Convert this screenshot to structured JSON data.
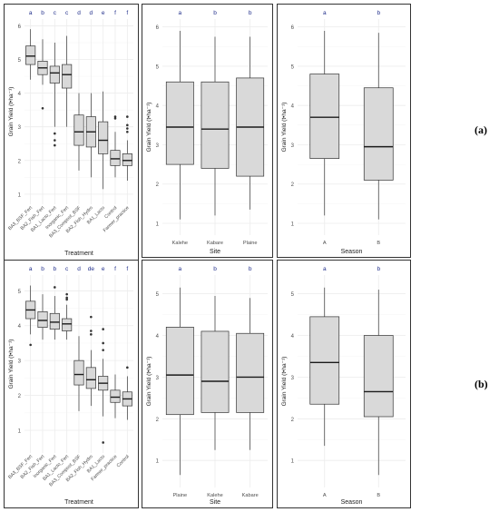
{
  "colors": {
    "letter": "#1f2d8a",
    "box_fill": "#d9d9d9",
    "median": "#1a1a1a",
    "whisker": "#333333",
    "grid": "#ececec",
    "axis_text": "#4d4d4d"
  },
  "row_labels": [
    "(a)",
    "(b)"
  ],
  "chart_data": [
    {
      "type": "box",
      "row": "(a)",
      "title": "",
      "xlabel": "Treatment",
      "ylabel": "Grain Yield (t•ha⁻¹)",
      "ylim": [
        0.7,
        6.2
      ],
      "yticks": [
        1,
        2,
        3,
        4,
        5,
        6
      ],
      "categories": [
        "BA3_BSF_Fert",
        "BA2_Fish_Fert",
        "BA1_Lacto_Fert",
        "Inorganic_Fert",
        "BA3_Compost_BSF",
        "BA2_Fish_Hydro",
        "BA1_Lacto",
        "Control",
        "Farmer_practice"
      ],
      "letters": [
        "a",
        "b",
        "c",
        "c",
        "d",
        "d",
        "e",
        "f",
        "f"
      ],
      "boxes": [
        {
          "min": 4.4,
          "q1": 4.85,
          "median": 5.1,
          "q3": 5.4,
          "max": 5.9,
          "outliers": []
        },
        {
          "min": 4.25,
          "q1": 4.55,
          "median": 4.75,
          "q3": 4.95,
          "max": 5.6,
          "outliers": [
            3.55
          ]
        },
        {
          "min": 3.0,
          "q1": 4.3,
          "median": 4.6,
          "q3": 4.8,
          "max": 5.5,
          "outliers": [
            2.8,
            2.6,
            2.45
          ]
        },
        {
          "min": 3.0,
          "q1": 4.15,
          "median": 4.55,
          "q3": 4.85,
          "max": 5.7,
          "outliers": []
        },
        {
          "min": 1.7,
          "q1": 2.45,
          "median": 2.85,
          "q3": 3.35,
          "max": 4.0,
          "outliers": []
        },
        {
          "min": 1.5,
          "q1": 2.4,
          "median": 2.85,
          "q3": 3.3,
          "max": 4.0,
          "outliers": []
        },
        {
          "min": 1.15,
          "q1": 2.2,
          "median": 2.6,
          "q3": 3.15,
          "max": 4.05,
          "outliers": []
        },
        {
          "min": 1.5,
          "q1": 1.85,
          "median": 2.05,
          "q3": 2.3,
          "max": 2.85,
          "outliers": [
            3.25,
            3.3
          ]
        },
        {
          "min": 1.4,
          "q1": 1.85,
          "median": 2.0,
          "q3": 2.2,
          "max": 2.6,
          "outliers": [
            2.85,
            2.95,
            3.05,
            3.3
          ]
        }
      ]
    },
    {
      "type": "box",
      "row": "(a)",
      "title": "",
      "xlabel": "Site",
      "ylabel": "Grain Yield (t•ha⁻¹)",
      "ylim": [
        0.7,
        6.2
      ],
      "yticks": [
        1,
        2,
        3,
        4,
        5,
        6
      ],
      "categories": [
        "Kalehe",
        "Kabare",
        "Plaine"
      ],
      "letters": [
        "a",
        "b",
        "b"
      ],
      "boxes": [
        {
          "min": 1.1,
          "q1": 2.5,
          "median": 3.45,
          "q3": 4.6,
          "max": 5.9,
          "outliers": []
        },
        {
          "min": 1.2,
          "q1": 2.4,
          "median": 3.4,
          "q3": 4.6,
          "max": 5.75,
          "outliers": []
        },
        {
          "min": 1.35,
          "q1": 2.2,
          "median": 3.45,
          "q3": 4.7,
          "max": 5.75,
          "outliers": []
        }
      ]
    },
    {
      "type": "box",
      "row": "(a)",
      "title": "",
      "xlabel": "Season",
      "ylabel": "Grain Yield (t•ha⁻¹)",
      "ylim": [
        0.7,
        6.2
      ],
      "yticks": [
        1,
        2,
        3,
        4,
        5,
        6
      ],
      "categories": [
        "A",
        "B"
      ],
      "letters": [
        "a",
        "b"
      ],
      "boxes": [
        {
          "min": 1.2,
          "q1": 2.65,
          "median": 3.7,
          "q3": 4.8,
          "max": 5.9,
          "outliers": []
        },
        {
          "min": 1.1,
          "q1": 2.1,
          "median": 2.95,
          "q3": 4.45,
          "max": 5.85,
          "outliers": []
        }
      ]
    },
    {
      "type": "box",
      "row": "(b)",
      "title": "",
      "xlabel": "Treatment",
      "ylabel": "Grain Yield (t•ha⁻¹)",
      "ylim": [
        0.35,
        5.45
      ],
      "yticks": [
        1,
        2,
        3,
        4,
        5
      ],
      "categories": [
        "BA3_BSF_Fert",
        "BA2_Fish_Fert",
        "Inorganic_Fert",
        "BA1_Lacto_Fert",
        "BA3_Compost_BSF",
        "BA2_Fish_Hydro",
        "BA1_Lacto",
        "Farmer_practice",
        "Control"
      ],
      "letters": [
        "a",
        "b",
        "b",
        "c",
        "d",
        "de",
        "e",
        "f",
        "f"
      ],
      "boxes": [
        {
          "min": 3.75,
          "q1": 4.2,
          "median": 4.45,
          "q3": 4.7,
          "max": 5.15,
          "outliers": [
            3.45
          ]
        },
        {
          "min": 3.6,
          "q1": 3.95,
          "median": 4.15,
          "q3": 4.4,
          "max": 4.9,
          "outliers": []
        },
        {
          "min": 3.6,
          "q1": 3.9,
          "median": 4.1,
          "q3": 4.35,
          "max": 4.85,
          "outliers": [
            5.1
          ]
        },
        {
          "min": 3.6,
          "q1": 3.85,
          "median": 4.05,
          "q3": 4.2,
          "max": 4.6,
          "outliers": [
            4.75,
            4.8,
            4.9
          ]
        },
        {
          "min": 1.55,
          "q1": 2.3,
          "median": 2.6,
          "q3": 3.0,
          "max": 3.7,
          "outliers": []
        },
        {
          "min": 1.7,
          "q1": 2.2,
          "median": 2.45,
          "q3": 2.8,
          "max": 3.3,
          "outliers": [
            4.25,
            3.85,
            3.75
          ]
        },
        {
          "min": 1.4,
          "q1": 2.15,
          "median": 2.35,
          "q3": 2.55,
          "max": 3.05,
          "outliers": [
            3.9,
            3.5,
            3.3,
            0.65
          ]
        },
        {
          "min": 1.35,
          "q1": 1.8,
          "median": 1.95,
          "q3": 2.15,
          "max": 2.6,
          "outliers": []
        },
        {
          "min": 1.3,
          "q1": 1.7,
          "median": 1.9,
          "q3": 2.1,
          "max": 2.55,
          "outliers": [
            2.8
          ]
        }
      ]
    },
    {
      "type": "box",
      "row": "(b)",
      "title": "",
      "xlabel": "Site",
      "ylabel": "Grain Yield (t•ha⁻¹)",
      "ylim": [
        0.35,
        5.45
      ],
      "yticks": [
        1,
        2,
        3,
        4,
        5
      ],
      "categories": [
        "Plaine",
        "Kalehe",
        "Kabare"
      ],
      "letters": [
        "a",
        "b",
        "b"
      ],
      "boxes": [
        {
          "min": 0.65,
          "q1": 2.1,
          "median": 3.05,
          "q3": 4.2,
          "max": 5.15,
          "outliers": []
        },
        {
          "min": 1.25,
          "q1": 2.15,
          "median": 2.9,
          "q3": 4.1,
          "max": 4.95,
          "outliers": []
        },
        {
          "min": 1.25,
          "q1": 2.15,
          "median": 3.0,
          "q3": 4.05,
          "max": 4.9,
          "outliers": []
        }
      ]
    },
    {
      "type": "box",
      "row": "(b)",
      "title": "",
      "xlabel": "Season",
      "ylabel": "Grain Yield (t•ha⁻¹)",
      "ylim": [
        0.35,
        5.45
      ],
      "yticks": [
        1,
        2,
        3,
        4,
        5
      ],
      "categories": [
        "A",
        "B"
      ],
      "letters": [
        "a",
        "b"
      ],
      "boxes": [
        {
          "min": 1.35,
          "q1": 2.35,
          "median": 3.35,
          "q3": 4.45,
          "max": 5.15,
          "outliers": []
        },
        {
          "min": 0.65,
          "q1": 2.05,
          "median": 2.65,
          "q3": 4.0,
          "max": 5.1,
          "outliers": []
        }
      ]
    }
  ]
}
